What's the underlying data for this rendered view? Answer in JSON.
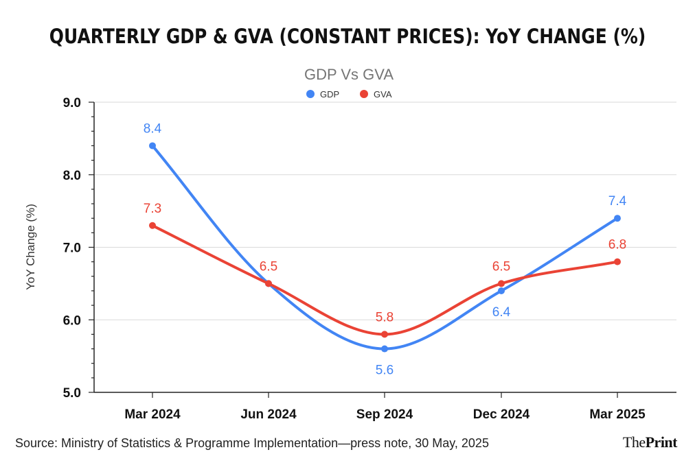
{
  "headline": "QUARTERLY GDP & GVA (CONSTANT PRICES): YoY CHANGE (%)",
  "source": "Source: Ministry of Statistics & Programme Implementation—press note, 30 May, 2025",
  "brand": {
    "part1": "The",
    "part2": "Print"
  },
  "colors": {
    "gdp": "#4285f4",
    "gva": "#ea4335",
    "grid": "#d9d9d9",
    "axis": "#222222"
  },
  "chart_data": {
    "type": "line",
    "title": "GDP Vs GVA",
    "xlabel": "",
    "ylabel": "YoY Change (%)",
    "categories": [
      "Mar 2024",
      "Jun 2024",
      "Sep 2024",
      "Dec 2024",
      "Mar 2025"
    ],
    "ylim": [
      5.0,
      9.0
    ],
    "yticks": [
      "5.0",
      "6.0",
      "7.0",
      "8.0",
      "9.0"
    ],
    "legend_position": "top-center",
    "grid": true,
    "series": [
      {
        "name": "GDP",
        "values": [
          8.4,
          6.5,
          5.6,
          6.4,
          7.4
        ],
        "labels": [
          "8.4",
          "",
          "5.6",
          "6.4",
          "7.4"
        ],
        "label_positions": [
          "above",
          "none",
          "below",
          "below",
          "above"
        ]
      },
      {
        "name": "GVA",
        "values": [
          7.3,
          6.5,
          5.8,
          6.5,
          6.8
        ],
        "labels": [
          "7.3",
          "6.5",
          "5.8",
          "6.5",
          "6.8"
        ],
        "label_positions": [
          "above",
          "above",
          "above",
          "above",
          "above"
        ]
      }
    ]
  }
}
